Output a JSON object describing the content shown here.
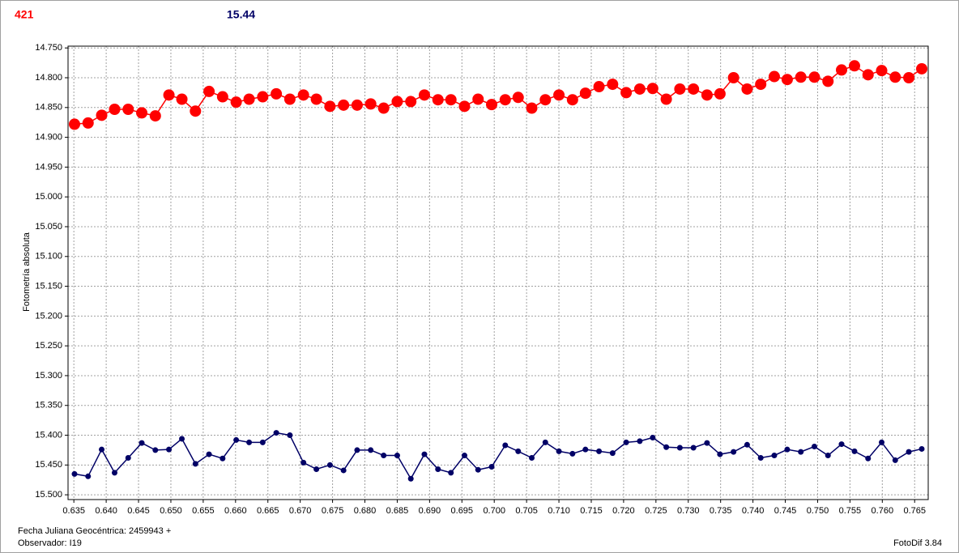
{
  "chart_data": {
    "type": "line",
    "y_label": "Fotometría absoluta",
    "footer_left": [
      "Fecha Juliana Geocéntrica: 2459943 +",
      "Observador: I19"
    ],
    "footer_right": "FotoDif 3.84",
    "grid": true,
    "y_inverted": true,
    "xlim": [
      0.6341,
      0.7671
    ],
    "ylim": [
      14.747,
      15.508
    ],
    "xticks": [
      0.635,
      {
        "value": 0.64,
        "label": "0.640"
      },
      0.645,
      {
        "value": 0.65,
        "label": "0.650"
      },
      0.655,
      {
        "value": 0.66,
        "label": "0.660"
      },
      0.665,
      {
        "value": 0.67,
        "label": "0.670"
      },
      0.675,
      {
        "value": 0.68,
        "label": "0.680"
      },
      0.685,
      {
        "value": 0.69,
        "label": "0.690"
      },
      0.695,
      {
        "value": 0.7,
        "label": "0.700"
      },
      0.705,
      {
        "value": 0.71,
        "label": "0.710"
      },
      0.715,
      {
        "value": 0.72,
        "label": "0.720"
      },
      0.725,
      {
        "value": 0.73,
        "label": "0.730"
      },
      0.735,
      {
        "value": 0.74,
        "label": "0.740"
      },
      0.745,
      {
        "value": 0.75,
        "label": "0.750"
      },
      0.755,
      {
        "value": 0.76,
        "label": "0.760"
      },
      0.765
    ],
    "yticks": [
      {
        "value": 14.75,
        "label": "14.750"
      },
      {
        "value": 14.8,
        "label": "14.800"
      },
      {
        "value": 14.85,
        "label": "14.850"
      },
      {
        "value": 14.9,
        "label": "14.900"
      },
      {
        "value": 14.95,
        "label": "14.950"
      },
      {
        "value": 15.0,
        "label": "15.000"
      },
      {
        "value": 15.05,
        "label": "15.050"
      },
      {
        "value": 15.1,
        "label": "15.100"
      },
      {
        "value": 15.15,
        "label": "15.150"
      },
      {
        "value": 15.2,
        "label": "15.200"
      },
      {
        "value": 15.25,
        "label": "15.250"
      },
      {
        "value": 15.3,
        "label": "15.300"
      },
      {
        "value": 15.35,
        "label": "15.350"
      },
      {
        "value": 15.4,
        "label": "15.400"
      },
      {
        "value": 15.45,
        "label": "15.450"
      },
      {
        "value": 15.5,
        "label": "15.500"
      }
    ],
    "x": [
      0.6351,
      0.6372,
      0.6393,
      0.6413,
      0.6434,
      0.6455,
      0.6476,
      0.6497,
      0.6517,
      0.6538,
      0.6559,
      0.658,
      0.6601,
      0.6621,
      0.6642,
      0.6663,
      0.6684,
      0.6705,
      0.6725,
      0.6746,
      0.6767,
      0.6788,
      0.6809,
      0.6829,
      0.685,
      0.6871,
      0.6892,
      0.6913,
      0.6933,
      0.6954,
      0.6975,
      0.6996,
      0.7017,
      0.7037,
      0.7058,
      0.7079,
      0.71,
      0.7121,
      0.7141,
      0.7162,
      0.7183,
      0.7204,
      0.7225,
      0.7245,
      0.7266,
      0.7287,
      0.7308,
      0.7329,
      0.7349,
      0.737,
      0.7391,
      0.7412,
      0.7433,
      0.7453,
      0.7474,
      0.7495,
      0.7516,
      0.7537,
      0.7557,
      0.7578,
      0.7599,
      0.762,
      0.7641,
      0.7661
    ],
    "series": [
      {
        "name": "421",
        "color": "#ff0000",
        "marker_size": 7,
        "values": [
          14.878,
          14.876,
          14.863,
          14.853,
          14.853,
          14.859,
          14.864,
          14.829,
          14.836,
          14.856,
          14.823,
          14.832,
          14.841,
          14.836,
          14.832,
          14.827,
          14.836,
          14.829,
          14.836,
          14.848,
          14.846,
          14.846,
          14.844,
          14.851,
          14.84,
          14.84,
          14.829,
          14.837,
          14.837,
          14.848,
          14.836,
          14.845,
          14.837,
          14.833,
          14.851,
          14.837,
          14.829,
          14.837,
          14.826,
          14.815,
          14.811,
          14.825,
          14.819,
          14.818,
          14.836,
          14.819,
          14.819,
          14.829,
          14.827,
          14.8,
          14.819,
          14.811,
          14.798,
          14.803,
          14.799,
          14.799,
          14.806,
          14.787,
          14.78,
          14.795,
          14.788,
          14.799,
          14.8,
          14.785
        ]
      },
      {
        "name": "15.44",
        "color": "#000066",
        "marker_size": 3.5,
        "values": [
          15.465,
          15.469,
          15.424,
          15.463,
          15.438,
          15.413,
          15.425,
          15.424,
          15.406,
          15.448,
          15.432,
          15.439,
          15.408,
          15.412,
          15.412,
          15.396,
          15.4,
          15.446,
          15.457,
          15.45,
          15.459,
          15.425,
          15.425,
          15.434,
          15.434,
          15.473,
          15.432,
          15.457,
          15.463,
          15.434,
          15.458,
          15.453,
          15.417,
          15.427,
          15.438,
          15.412,
          15.427,
          15.431,
          15.424,
          15.427,
          15.43,
          15.412,
          15.41,
          15.404,
          15.42,
          15.421,
          15.421,
          15.413,
          15.432,
          15.428,
          15.416,
          15.438,
          15.434,
          15.424,
          15.428,
          15.419,
          15.434,
          15.415,
          15.427,
          15.439,
          15.412,
          15.442,
          15.428,
          15.423
        ]
      }
    ]
  }
}
